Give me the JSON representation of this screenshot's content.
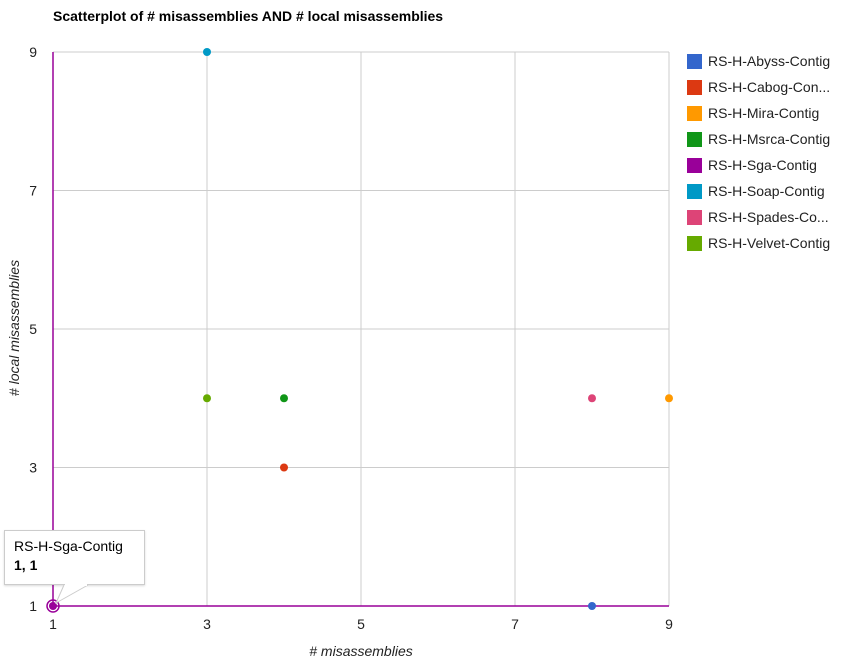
{
  "chart_data": {
    "type": "scatter",
    "title": "Scatterplot of # misassemblies AND # local misassemblies",
    "xlabel": "# misassemblies",
    "ylabel": "# local misassemblies",
    "xlim": [
      1,
      9
    ],
    "ylim": [
      1,
      9
    ],
    "xticks": [
      "1",
      "3",
      "5",
      "7",
      "9"
    ],
    "yticks": [
      "1",
      "3",
      "5",
      "7",
      "9"
    ],
    "grid": true,
    "legend_position": "right",
    "series": [
      {
        "name": "RS-H-Abyss-Contig",
        "color": "#3366cc",
        "points": [
          [
            8,
            1
          ]
        ]
      },
      {
        "name": "RS-H-Cabog-Con...",
        "color": "#dc3912",
        "points": [
          [
            4,
            3
          ]
        ]
      },
      {
        "name": "RS-H-Mira-Contig",
        "color": "#ff9900",
        "points": [
          [
            9,
            4
          ]
        ]
      },
      {
        "name": "RS-H-Msrca-Contig",
        "color": "#109618",
        "points": [
          [
            4,
            4
          ]
        ]
      },
      {
        "name": "RS-H-Sga-Contig",
        "color": "#990099",
        "points": [
          [
            1,
            1
          ]
        ]
      },
      {
        "name": "RS-H-Soap-Contig",
        "color": "#0099c6",
        "points": [
          [
            3,
            9
          ]
        ]
      },
      {
        "name": "RS-H-Spades-Co...",
        "color": "#dd4477",
        "points": [
          [
            8,
            4
          ]
        ]
      },
      {
        "name": "RS-H-Velvet-Contig",
        "color": "#66aa00",
        "points": [
          [
            3,
            4
          ]
        ]
      }
    ],
    "tooltip": {
      "series": "RS-H-Sga-Contig",
      "value": "1, 1"
    }
  }
}
